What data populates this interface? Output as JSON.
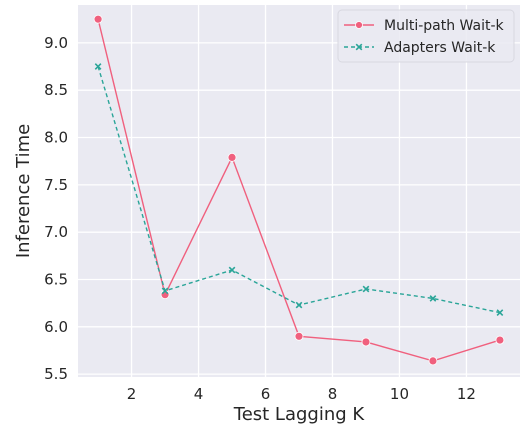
{
  "chart_data": {
    "type": "line",
    "xlabel": "Test Lagging K",
    "ylabel": "Inference Time",
    "xlim": [
      0.4,
      13.6
    ],
    "ylim": [
      5.47,
      9.4
    ],
    "xticks": [
      2,
      4,
      6,
      8,
      10,
      12
    ],
    "yticks": [
      5.5,
      6.0,
      6.5,
      7.0,
      7.5,
      8.0,
      8.5,
      9.0
    ],
    "ytick_labels": [
      "5.5",
      "6.0",
      "6.5",
      "7.0",
      "7.5",
      "8.0",
      "8.5",
      "9.0"
    ],
    "grid": true,
    "background": "#eaeaf2",
    "legend_position": "top-right",
    "series": [
      {
        "name": "Multi-path Wait-k",
        "color": "#f0607e",
        "linestyle": "solid",
        "marker": "circle",
        "x": [
          1,
          3,
          5,
          7,
          9,
          11,
          13
        ],
        "y": [
          9.25,
          6.34,
          7.79,
          5.9,
          5.84,
          5.64,
          5.86
        ]
      },
      {
        "name": "Adapters Wait-k",
        "color": "#2aa598",
        "linestyle": "dashed",
        "marker": "x",
        "x": [
          1,
          3,
          5,
          7,
          9,
          11,
          13
        ],
        "y": [
          8.75,
          6.38,
          6.6,
          6.23,
          6.4,
          6.3,
          6.15
        ]
      }
    ]
  }
}
